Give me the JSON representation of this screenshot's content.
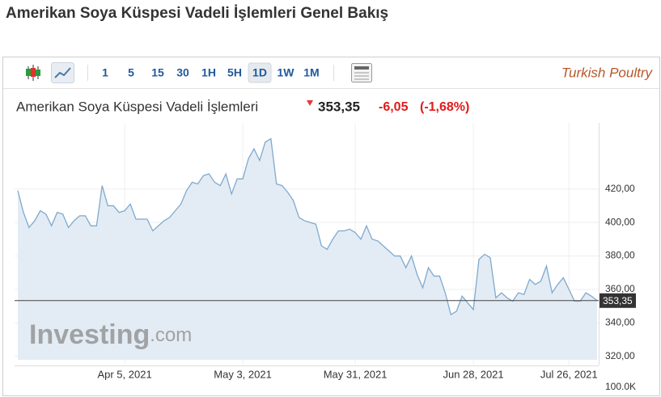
{
  "page_title": "Amerikan Soya Küspesi Vadeli İşlemleri Genel Bakış",
  "toolbar": {
    "intervals": [
      "1",
      "5",
      "15",
      "30",
      "1H",
      "5H",
      "1D",
      "1W",
      "1M"
    ],
    "active": 6
  },
  "logo": "Turkish Poultry",
  "widget": {
    "name": "Amerikan Soya Küspesi Vadeli İşlemleri",
    "price": "353,35",
    "change": "-6,05",
    "change_pct": "(-1,68%)"
  },
  "watermark": {
    "brand": "Investing",
    "suffix": ".com"
  },
  "chart_data": {
    "type": "area",
    "categories": [
      null,
      null,
      null,
      null,
      null,
      null,
      null,
      null,
      null,
      null,
      null,
      null,
      null,
      null,
      null,
      null,
      null,
      null,
      null,
      "Apr 5, 2021",
      null,
      null,
      null,
      null,
      null,
      null,
      null,
      null,
      null,
      null,
      null,
      null,
      null,
      null,
      null,
      null,
      null,
      null,
      null,
      null,
      "May 3, 2021",
      null,
      null,
      null,
      null,
      null,
      null,
      null,
      null,
      null,
      null,
      null,
      null,
      null,
      null,
      null,
      null,
      null,
      null,
      null,
      "May 31, 2021",
      null,
      null,
      null,
      null,
      null,
      null,
      null,
      null,
      null,
      null,
      null,
      null,
      null,
      null,
      null,
      null,
      null,
      null,
      null,
      null,
      "Jun 28, 2021",
      null,
      null,
      null,
      null,
      null,
      null,
      null,
      null,
      null,
      null,
      null,
      null,
      null,
      null,
      null,
      null,
      "Jul 26, 2021",
      null,
      null,
      null,
      null,
      null
    ],
    "values": [
      419,
      406,
      397,
      401,
      407,
      405,
      398,
      406,
      405,
      397,
      401,
      404,
      404,
      398,
      398,
      422,
      410,
      410,
      406,
      407,
      411,
      402,
      402,
      402,
      395,
      398,
      401,
      403,
      407,
      411,
      419,
      424,
      423,
      428,
      429,
      424,
      422,
      429,
      417,
      426,
      426,
      438,
      444,
      437,
      448,
      450,
      423,
      422,
      418,
      413,
      403,
      401,
      400,
      399,
      386,
      384,
      390,
      395,
      395,
      396,
      394,
      390,
      398,
      390,
      389,
      386,
      383,
      380,
      380,
      373,
      380,
      369,
      361,
      373,
      368,
      368,
      358,
      345,
      347,
      356,
      352,
      348,
      378,
      381,
      379,
      355,
      358,
      355,
      353,
      358,
      357,
      366,
      363,
      365,
      374,
      358,
      363,
      367,
      360,
      353,
      353,
      358,
      356,
      353.35
    ],
    "color": "#7fa9cf",
    "area_color": "#e3ecf4",
    "ylim": [
      318,
      458
    ],
    "yticks": [
      {
        "value": 320,
        "label": "320,00"
      },
      {
        "value": 340,
        "label": "340,00"
      },
      {
        "value": 360,
        "label": "360,00"
      },
      {
        "value": 380,
        "label": "380,00"
      },
      {
        "value": 400,
        "label": "400,00"
      },
      {
        "value": 420,
        "label": "420,00"
      }
    ],
    "price_line": {
      "value": 353.35,
      "label": "353,35"
    },
    "volume_label": "100.0K",
    "grid": true
  }
}
